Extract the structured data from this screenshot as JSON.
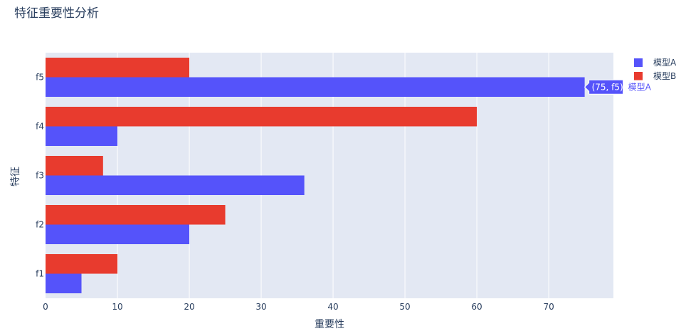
{
  "chart_data": {
    "type": "bar",
    "orientation": "horizontal",
    "title": "特征重要性分析",
    "xlabel": "重要性",
    "ylabel": "特征",
    "categories": [
      "f1",
      "f2",
      "f3",
      "f4",
      "f5"
    ],
    "series": [
      {
        "name": "模型A",
        "values": [
          5,
          20,
          36,
          10,
          75
        ],
        "color": "#5553fa"
      },
      {
        "name": "模型B",
        "values": [
          10,
          25,
          8,
          60,
          20
        ],
        "color": "#e83b2e"
      }
    ],
    "xlim": [
      0,
      79
    ],
    "xticks": [
      0,
      10,
      20,
      30,
      40,
      50,
      60,
      70
    ],
    "xtick_labels": [
      "0",
      "10",
      "20",
      "30",
      "40",
      "50",
      "60",
      "70"
    ],
    "grid": true,
    "legend_position": "top-right",
    "hover": {
      "text": "(75, f5)",
      "series_label": "模型A"
    },
    "colors": {
      "plot_bg": "#e3e8f3",
      "grid": "#ffffff",
      "text": "#2a3f5f"
    }
  }
}
